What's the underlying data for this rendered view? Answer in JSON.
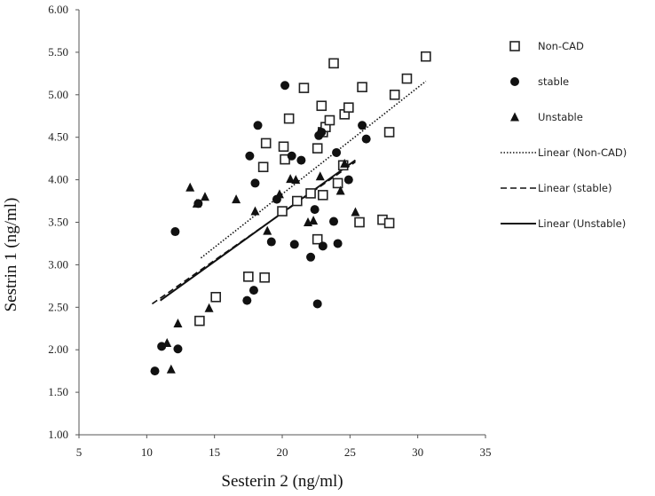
{
  "chart_data": {
    "type": "scatter",
    "title": "",
    "xlabel": "Sesterin 2 (ng/ml)",
    "ylabel": "Sestrin 1 (ng/ml)",
    "xlim": [
      5,
      35
    ],
    "ylim": [
      1.0,
      6.0
    ],
    "xticks": [
      5,
      10,
      15,
      20,
      25,
      30,
      35
    ],
    "yticks": [
      "1.00",
      "1.50",
      "2.00",
      "2.50",
      "3.00",
      "3.50",
      "4.00",
      "4.50",
      "5.00",
      "5.50",
      "6.00"
    ],
    "grid": false,
    "legend_position": "right",
    "series": [
      {
        "name": "Non-CAD",
        "marker": "open-square",
        "points": [
          [
            13.9,
            2.34
          ],
          [
            15.1,
            2.62
          ],
          [
            17.5,
            2.86
          ],
          [
            18.7,
            2.85
          ],
          [
            18.6,
            4.15
          ],
          [
            18.8,
            4.43
          ],
          [
            20.0,
            3.63
          ],
          [
            20.1,
            4.39
          ],
          [
            20.2,
            4.24
          ],
          [
            20.5,
            4.72
          ],
          [
            21.1,
            3.75
          ],
          [
            21.6,
            5.08
          ],
          [
            22.1,
            3.84
          ],
          [
            22.6,
            3.3
          ],
          [
            22.6,
            4.37
          ],
          [
            22.9,
            4.87
          ],
          [
            23.0,
            3.82
          ],
          [
            23.0,
            4.56
          ],
          [
            23.2,
            4.62
          ],
          [
            23.5,
            4.7
          ],
          [
            23.8,
            5.37
          ],
          [
            24.1,
            3.96
          ],
          [
            24.5,
            4.17
          ],
          [
            24.6,
            4.77
          ],
          [
            24.9,
            4.85
          ],
          [
            25.7,
            3.5
          ],
          [
            25.9,
            5.09
          ],
          [
            27.4,
            3.53
          ],
          [
            27.9,
            3.49
          ],
          [
            27.9,
            4.56
          ],
          [
            28.3,
            5.0
          ],
          [
            29.2,
            5.19
          ],
          [
            30.6,
            5.45
          ]
        ]
      },
      {
        "name": "stable",
        "marker": "filled-circle",
        "points": [
          [
            10.6,
            1.75
          ],
          [
            11.1,
            2.04
          ],
          [
            12.1,
            3.39
          ],
          [
            12.3,
            2.01
          ],
          [
            13.8,
            3.72
          ],
          [
            17.4,
            2.58
          ],
          [
            17.6,
            4.28
          ],
          [
            17.9,
            2.7
          ],
          [
            18.0,
            3.96
          ],
          [
            18.2,
            4.64
          ],
          [
            19.2,
            3.27
          ],
          [
            19.6,
            3.77
          ],
          [
            20.2,
            5.11
          ],
          [
            20.7,
            4.28
          ],
          [
            20.9,
            3.24
          ],
          [
            21.4,
            4.23
          ],
          [
            22.1,
            3.09
          ],
          [
            22.4,
            3.65
          ],
          [
            22.6,
            2.54
          ],
          [
            22.7,
            4.52
          ],
          [
            22.9,
            4.56
          ],
          [
            23.0,
            3.22
          ],
          [
            23.8,
            3.51
          ],
          [
            24.0,
            4.32
          ],
          [
            24.1,
            3.25
          ],
          [
            24.9,
            4.0
          ],
          [
            25.9,
            4.64
          ],
          [
            26.2,
            4.48
          ]
        ]
      },
      {
        "name": "Unstable",
        "marker": "filled-triangle",
        "points": [
          [
            11.5,
            2.08
          ],
          [
            11.8,
            1.77
          ],
          [
            12.3,
            2.31
          ],
          [
            13.2,
            3.91
          ],
          [
            13.7,
            3.72
          ],
          [
            14.3,
            3.8
          ],
          [
            14.6,
            2.49
          ],
          [
            16.6,
            3.77
          ],
          [
            18.0,
            3.63
          ],
          [
            18.9,
            3.4
          ],
          [
            19.8,
            3.83
          ],
          [
            20.6,
            4.01
          ],
          [
            21.0,
            4.0
          ],
          [
            21.9,
            3.5
          ],
          [
            22.3,
            3.52
          ],
          [
            22.8,
            4.04
          ],
          [
            24.3,
            3.87
          ],
          [
            24.6,
            4.19
          ],
          [
            25.4,
            3.62
          ]
        ]
      }
    ],
    "trendlines": [
      {
        "name": "Linear (Non-CAD)",
        "style": "dotted",
        "x": [
          14.0,
          30.6
        ],
        "y": [
          3.08,
          5.16
        ]
      },
      {
        "name": "Linear (stable)",
        "style": "dashed",
        "x": [
          10.4,
          25.4
        ],
        "y": [
          2.54,
          4.21
        ]
      },
      {
        "name": "Linear (Unstable)",
        "style": "solid",
        "x": [
          11.0,
          25.4
        ],
        "y": [
          2.58,
          4.23
        ]
      }
    ]
  }
}
